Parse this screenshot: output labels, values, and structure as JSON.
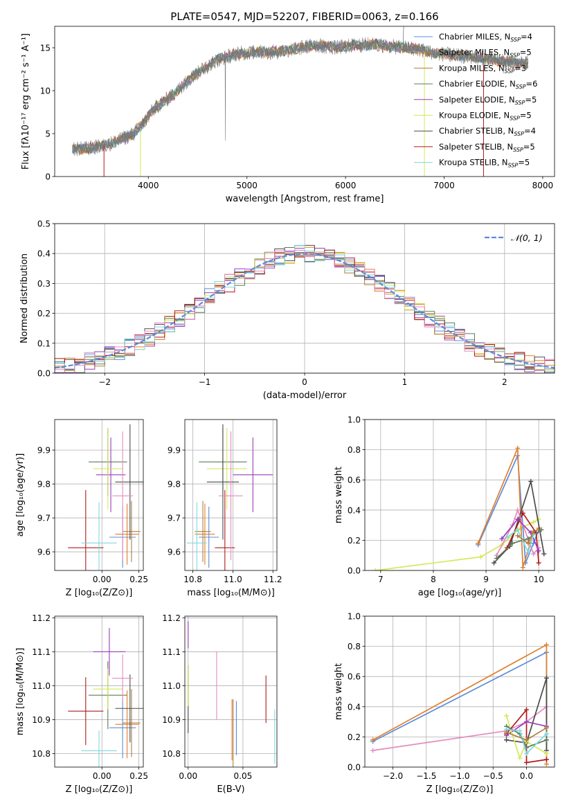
{
  "colors": {
    "chabrier_miles": "#5b8bd9",
    "salpeter_miles": "#e07f2c",
    "kroupa_miles": "#b07d3b",
    "chabrier_elodie": "#5c7a5c",
    "salpeter_elodie": "#9a3cb8",
    "kroupa_elodie": "#d5e85a",
    "chabrier_stelib": "#4a4a4a",
    "salpeter_stelib": "#b01818",
    "kroupa_stelib": "#7fd8de",
    "pink": "#e58ac0",
    "gaussian": "#5b8bd9"
  },
  "chart_data": [
    {
      "id": "spectrum",
      "type": "line",
      "title": "PLATE=0547, MJD=52207, FIBERID=0063, z=0.166",
      "xlabel": "wavelength [Angstrom, rest frame]",
      "ylabel": "Flux [fλ10⁻¹⁷ erg cm⁻² s⁻¹ A⁻¹]",
      "xlim": [
        3050,
        8120
      ],
      "ylim": [
        0,
        17.5
      ],
      "xticks": [
        4000,
        5000,
        6000,
        7000,
        8000
      ],
      "yticks": [
        0,
        5,
        10,
        15
      ],
      "grid": false,
      "legend_position": "right",
      "legend": [
        {
          "label": "Chabrier MILES, N",
          "sub": "SSP",
          "tail": "=4"
        },
        {
          "label": "Salpeter MILES, N",
          "sub": "SSP",
          "tail": "=5"
        },
        {
          "label": "Kroupa MILES, N",
          "sub": "SSP",
          "tail": "=3"
        },
        {
          "label": "Chabrier ELODIE, N",
          "sub": "SSP",
          "tail": "=6"
        },
        {
          "label": "Salpeter ELODIE, N",
          "sub": "SSP",
          "tail": "=5"
        },
        {
          "label": "Kroupa ELODIE, N",
          "sub": "SSP",
          "tail": "=5"
        },
        {
          "label": "Chabrier STELIB, N",
          "sub": "SSP",
          "tail": "=4"
        },
        {
          "label": "Salpeter STELIB, N",
          "sub": "SSP",
          "tail": "=5"
        },
        {
          "label": "Kroupa STELIB, N",
          "sub": "SSP",
          "tail": "=5"
        }
      ],
      "continuum": [
        [
          3230,
          3.2
        ],
        [
          3400,
          3.3
        ],
        [
          3550,
          3.6
        ],
        [
          3700,
          4.2
        ],
        [
          3850,
          5.0
        ],
        [
          3950,
          6.2
        ],
        [
          4050,
          7.8
        ],
        [
          4150,
          8.7
        ],
        [
          4250,
          9.5
        ],
        [
          4400,
          11.2
        ],
        [
          4550,
          12.5
        ],
        [
          4700,
          13.6
        ],
        [
          4900,
          14.3
        ],
        [
          5100,
          14.5
        ],
        [
          5300,
          14.5
        ],
        [
          5500,
          14.9
        ],
        [
          5700,
          15.3
        ],
        [
          5900,
          15.0
        ],
        [
          6100,
          15.3
        ],
        [
          6300,
          15.4
        ],
        [
          6500,
          15.1
        ],
        [
          6700,
          14.9
        ],
        [
          6900,
          14.4
        ],
        [
          7100,
          14.1
        ],
        [
          7300,
          13.9
        ],
        [
          7500,
          13.6
        ],
        [
          7700,
          13.2
        ],
        [
          7850,
          13.2
        ]
      ]
    },
    {
      "id": "residuals",
      "type": "histogram",
      "xlabel": "(data-model)/error",
      "ylabel": "Normed distribution",
      "xlim": [
        -2.5,
        2.5
      ],
      "ylim": [
        0,
        0.5
      ],
      "xticks": [
        -2,
        -1,
        0,
        1,
        2
      ],
      "yticks": [
        0.0,
        0.1,
        0.2,
        0.3,
        0.4,
        0.5
      ],
      "grid": true,
      "legend_label": "𝒩(0, 1)",
      "legend_position": "top-right",
      "bin_width": 0.1
    },
    {
      "id": "age_vs_Z",
      "type": "scatter",
      "xlabel": "Z [log₁₀(Z/Z⊙)]",
      "ylabel": "age  [log₁₀(age/yr)]",
      "xlim": [
        -0.32,
        0.28
      ],
      "ylim": [
        9.545,
        9.99
      ],
      "xticks": [
        0.0,
        0.25
      ],
      "yticks": [
        9.6,
        9.7,
        9.8,
        9.9
      ],
      "grid": true,
      "points": [
        {
          "c": "chabrier_miles",
          "x": 0.14,
          "y": 9.643,
          "xe": 0.09,
          "ye": 0.09
        },
        {
          "c": "salpeter_miles",
          "x": 0.17,
          "y": 9.652,
          "xe": 0.08,
          "ye": 0.09
        },
        {
          "c": "kroupa_miles",
          "x": 0.2,
          "y": 9.66,
          "xe": 0.06,
          "ye": 0.09
        },
        {
          "c": "chabrier_elodie",
          "x": 0.04,
          "y": 9.865,
          "xe": 0.13,
          "ye": 0.1
        },
        {
          "c": "salpeter_elodie",
          "x": 0.06,
          "y": 9.827,
          "xe": 0.1,
          "ye": 0.11
        },
        {
          "c": "kroupa_elodie",
          "x": 0.04,
          "y": 9.845,
          "xe": 0.1,
          "ye": 0.12
        },
        {
          "c": "chabrier_stelib",
          "x": 0.19,
          "y": 9.806,
          "xe": 0.1,
          "ye": 0.17
        },
        {
          "c": "salpeter_stelib",
          "x": -0.11,
          "y": 9.612,
          "xe": 0.12,
          "ye": 0.17
        },
        {
          "c": "kroupa_stelib",
          "x": -0.02,
          "y": 9.626,
          "xe": 0.12,
          "ye": 0.12
        },
        {
          "c": "pink",
          "x": 0.14,
          "y": 9.765,
          "xe": 0.07,
          "ye": 0.19
        }
      ]
    },
    {
      "id": "age_vs_mass",
      "type": "scatter",
      "xlabel": "mass [log₁₀(M/M⊙)]",
      "ylabel": "",
      "xlim": [
        10.76,
        11.22
      ],
      "ylim": [
        9.545,
        9.99
      ],
      "xticks": [
        10.8,
        11.0,
        11.2
      ],
      "yticks": [
        9.6,
        9.7,
        9.8,
        9.9
      ],
      "grid": true,
      "points": [
        {
          "c": "chabrier_miles",
          "x": 10.88,
          "y": 9.643,
          "xe": 0.05,
          "ye": 0.09
        },
        {
          "c": "salpeter_miles",
          "x": 10.86,
          "y": 9.652,
          "xe": 0.05,
          "ye": 0.09
        },
        {
          "c": "kroupa_miles",
          "x": 10.85,
          "y": 9.66,
          "xe": 0.04,
          "ye": 0.09
        },
        {
          "c": "chabrier_elodie",
          "x": 10.95,
          "y": 9.865,
          "xe": 0.12,
          "ye": 0.1
        },
        {
          "c": "salpeter_elodie",
          "x": 11.1,
          "y": 9.827,
          "xe": 0.1,
          "ye": 0.11
        },
        {
          "c": "kroupa_elodie",
          "x": 10.97,
          "y": 9.845,
          "xe": 0.1,
          "ye": 0.12
        },
        {
          "c": "chabrier_stelib",
          "x": 10.95,
          "y": 9.806,
          "xe": 0.08,
          "ye": 0.17
        },
        {
          "c": "salpeter_stelib",
          "x": 10.96,
          "y": 9.612,
          "xe": 0.05,
          "ye": 0.17
        },
        {
          "c": "kroupa_stelib",
          "x": 10.82,
          "y": 9.626,
          "xe": 0.05,
          "ye": 0.12
        },
        {
          "c": "pink",
          "x": 10.99,
          "y": 9.765,
          "xe": 0.06,
          "ye": 0.19
        }
      ]
    },
    {
      "id": "weight_vs_age",
      "type": "line",
      "xlabel": "age  [log₁₀(age/yr)]",
      "ylabel": "mass weight",
      "xlim": [
        6.7,
        10.3
      ],
      "ylim": [
        0,
        1.0
      ],
      "xticks": [
        7,
        8,
        9,
        10
      ],
      "yticks": [
        0.0,
        0.2,
        0.4,
        0.6,
        0.8,
        1.0
      ],
      "grid": true,
      "series": [
        {
          "c": "kroupa_elodie",
          "x": [
            6.9,
            8.9,
            9.3,
            9.65,
            9.9,
            10.0
          ],
          "y": [
            0.0,
            0.09,
            0.17,
            0.28,
            0.32,
            0.34
          ]
        },
        {
          "c": "chabrier_miles",
          "x": [
            8.85,
            9.6,
            9.75,
            9.9,
            10.0
          ],
          "y": [
            0.17,
            0.76,
            0.05,
            0.18,
            0.27
          ]
        },
        {
          "c": "salpeter_miles",
          "x": [
            8.85,
            9.6,
            9.7,
            9.9,
            10.0
          ],
          "y": [
            0.18,
            0.81,
            0.02,
            0.25,
            0.28
          ]
        },
        {
          "c": "chabrier_stelib",
          "x": [
            9.15,
            9.45,
            9.85,
            10.1
          ],
          "y": [
            0.05,
            0.16,
            0.59,
            0.11
          ]
        },
        {
          "c": "salpeter_stelib",
          "x": [
            9.4,
            9.7,
            9.95,
            10.0
          ],
          "y": [
            0.15,
            0.38,
            0.25,
            0.05
          ]
        },
        {
          "c": "pink",
          "x": [
            9.2,
            9.5,
            9.6,
            9.9,
            10.0
          ],
          "y": [
            0.1,
            0.3,
            0.4,
            0.11,
            0.15
          ]
        },
        {
          "c": "salpeter_elodie",
          "x": [
            9.3,
            9.6,
            9.85,
            10.0
          ],
          "y": [
            0.21,
            0.34,
            0.25,
            0.13
          ]
        },
        {
          "c": "chabrier_elodie",
          "x": [
            9.2,
            9.5,
            9.8,
            10.05
          ],
          "y": [
            0.08,
            0.18,
            0.21,
            0.27
          ]
        },
        {
          "c": "kroupa_stelib",
          "x": [
            9.4,
            9.6,
            9.8,
            9.9
          ],
          "y": [
            0.22,
            0.27,
            0.12,
            0.24
          ]
        },
        {
          "c": "kroupa_miles",
          "x": [
            9.6,
            9.8,
            9.9
          ],
          "y": [
            0.23,
            0.18,
            0.26
          ]
        }
      ]
    },
    {
      "id": "mass_vs_Z",
      "type": "scatter",
      "xlabel": "Z [log₁₀(Z/Z⊙)]",
      "ylabel": "mass [log₁₀(M/M⊙)]",
      "xlim": [
        -0.32,
        0.28
      ],
      "ylim": [
        10.76,
        11.205
      ],
      "xticks": [
        0.0,
        0.25
      ],
      "yticks": [
        10.8,
        10.9,
        11.0,
        11.1,
        11.2
      ],
      "grid": true,
      "points": [
        {
          "c": "chabrier_miles",
          "x": 0.14,
          "y": 10.876,
          "xe": 0.09,
          "ye": 0.09
        },
        {
          "c": "salpeter_miles",
          "x": 0.17,
          "y": 10.886,
          "xe": 0.08,
          "ye": 0.1
        },
        {
          "c": "kroupa_miles",
          "x": 0.2,
          "y": 10.89,
          "xe": 0.06,
          "ye": 0.1
        },
        {
          "c": "chabrier_elodie",
          "x": 0.04,
          "y": 10.972,
          "xe": 0.13,
          "ye": 0.1
        },
        {
          "c": "salpeter_elodie",
          "x": 0.05,
          "y": 11.1,
          "xe": 0.11,
          "ye": 0.07
        },
        {
          "c": "kroupa_elodie",
          "x": 0.04,
          "y": 10.99,
          "xe": 0.1,
          "ye": 0.06
        },
        {
          "c": "chabrier_stelib",
          "x": 0.19,
          "y": 10.933,
          "xe": 0.1,
          "ye": 0.1
        },
        {
          "c": "salpeter_stelib",
          "x": -0.11,
          "y": 10.925,
          "xe": 0.12,
          "ye": 0.1
        },
        {
          "c": "kroupa_stelib",
          "x": -0.02,
          "y": 10.808,
          "xe": 0.12,
          "ye": 0.06
        },
        {
          "c": "pink",
          "x": 0.14,
          "y": 11.022,
          "xe": 0.07,
          "ye": 0.07
        }
      ]
    },
    {
      "id": "mass_vs_ebv",
      "type": "scatter",
      "xlabel": "E(B-V)",
      "ylabel": "",
      "xlim": [
        -0.003,
        0.081
      ],
      "ylim": [
        10.76,
        11.205
      ],
      "xticks": [
        0.0,
        0.05
      ],
      "yticks": [
        10.8,
        10.9,
        11.0,
        11.1,
        11.2
      ],
      "grid": true,
      "points": [
        {
          "c": "salpeter_elodie",
          "x": 0.0,
          "y": 11.15,
          "xe": 0,
          "ye": 0.04
        },
        {
          "c": "chabrier_stelib",
          "x": 0.0,
          "y": 10.96,
          "xe": 0,
          "ye": 0.1
        },
        {
          "c": "kroupa_elodie",
          "x": 0.0,
          "y": 11.0,
          "xe": 0,
          "ye": 0.06
        },
        {
          "c": "pink",
          "x": 0.026,
          "y": 11.0,
          "xe": 0,
          "ye": 0.1
        },
        {
          "c": "salpeter_miles",
          "x": 0.04,
          "y": 10.87,
          "xe": 0,
          "ye": 0.09
        },
        {
          "c": "kroupa_miles",
          "x": 0.041,
          "y": 10.86,
          "xe": 0,
          "ye": 0.1
        },
        {
          "c": "chabrier_miles",
          "x": 0.044,
          "y": 10.875,
          "xe": 0,
          "ye": 0.08
        },
        {
          "c": "salpeter_stelib",
          "x": 0.071,
          "y": 10.96,
          "xe": 0,
          "ye": 0.07
        },
        {
          "c": "kroupa_stelib",
          "x": 0.079,
          "y": 10.85,
          "xe": 0,
          "ye": 0.08
        }
      ]
    },
    {
      "id": "weight_vs_Z",
      "type": "line",
      "xlabel": "Z [log₁₀(Z/Z⊙)]",
      "ylabel": "mass weight",
      "xlim": [
        -2.42,
        0.42
      ],
      "ylim": [
        0,
        1.0
      ],
      "xticks": [
        -2.0,
        -1.5,
        -1.0,
        -0.5,
        0.0
      ],
      "yticks": [
        0.0,
        0.2,
        0.4,
        0.6,
        0.8,
        1.0
      ],
      "grid": true,
      "series": [
        {
          "c": "chabrier_miles",
          "x": [
            -2.3,
            0.3,
            0.3
          ],
          "y": [
            0.17,
            0.76,
            0.05
          ]
        },
        {
          "c": "salpeter_miles",
          "x": [
            -2.3,
            0.3,
            0.3
          ],
          "y": [
            0.18,
            0.81,
            0.02
          ]
        },
        {
          "c": "pink",
          "x": [
            -2.3,
            -0.3,
            0.0,
            0.3
          ],
          "y": [
            0.11,
            0.24,
            0.3,
            0.4
          ]
        },
        {
          "c": "chabrier_stelib",
          "x": [
            -0.3,
            0.0,
            0.3,
            0.3
          ],
          "y": [
            0.18,
            0.16,
            0.59,
            0.11
          ]
        },
        {
          "c": "salpeter_stelib",
          "x": [
            -0.3,
            0.0,
            0.0,
            0.3
          ],
          "y": [
            0.22,
            0.38,
            0.03,
            0.05
          ]
        },
        {
          "c": "salpeter_elodie",
          "x": [
            -0.3,
            0.0,
            0.3
          ],
          "y": [
            0.21,
            0.3,
            0.27
          ]
        },
        {
          "c": "kroupa_elodie",
          "x": [
            -0.3,
            -0.1,
            0.0,
            0.3
          ],
          "y": [
            0.34,
            0.06,
            0.17,
            0.09
          ]
        },
        {
          "c": "chabrier_elodie",
          "x": [
            -0.3,
            -0.1,
            0.0,
            0.3
          ],
          "y": [
            0.27,
            0.22,
            0.13,
            0.18
          ]
        },
        {
          "c": "kroupa_stelib",
          "x": [
            -0.3,
            -0.1,
            0.0,
            0.3
          ],
          "y": [
            0.25,
            0.24,
            0.09,
            0.22
          ]
        },
        {
          "c": "kroupa_miles",
          "x": [
            -0.3,
            0.0,
            0.3
          ],
          "y": [
            0.23,
            0.18,
            0.26
          ]
        }
      ]
    }
  ]
}
